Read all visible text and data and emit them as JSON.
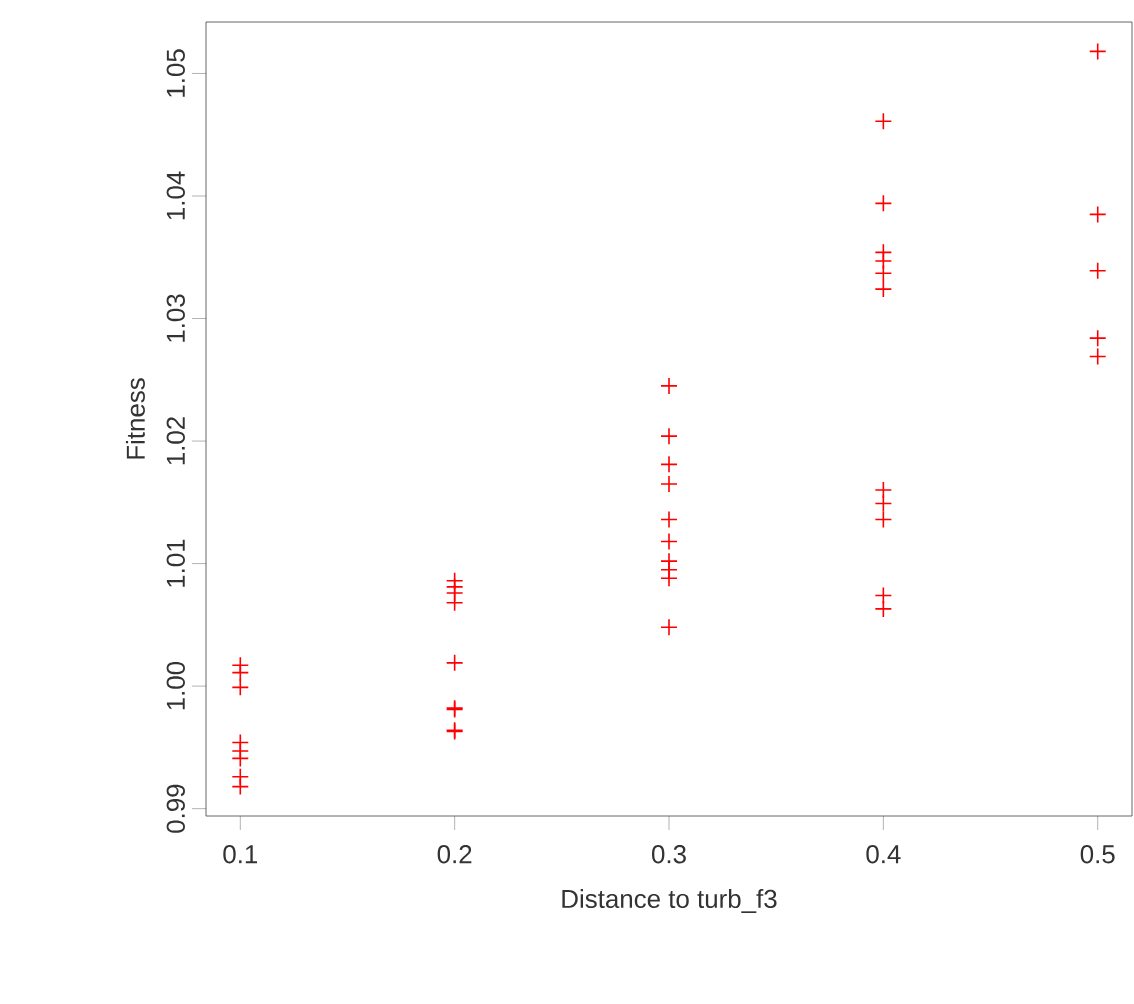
{
  "chart_data": {
    "type": "scatter",
    "xlabel": "Distance to turb_f3",
    "ylabel": "Fitness",
    "marker": "cross",
    "grid": false,
    "xlim": [
      0.084,
      0.516
    ],
    "ylim": [
      0.9894,
      1.0542
    ],
    "xticks": [
      {
        "value": 0.1,
        "label": "0.1"
      },
      {
        "value": 0.2,
        "label": "0.2"
      },
      {
        "value": 0.3,
        "label": "0.3"
      },
      {
        "value": 0.4,
        "label": "0.4"
      },
      {
        "value": 0.5,
        "label": "0.5"
      }
    ],
    "yticks": [
      {
        "value": 0.99,
        "label": "0.99"
      },
      {
        "value": 1.0,
        "label": "1.00"
      },
      {
        "value": 1.01,
        "label": "1.01"
      },
      {
        "value": 1.02,
        "label": "1.02"
      },
      {
        "value": 1.03,
        "label": "1.03"
      },
      {
        "value": 1.04,
        "label": "1.04"
      },
      {
        "value": 1.05,
        "label": "1.05"
      }
    ],
    "series": [
      {
        "color": "#ff0000",
        "x": [
          0.1,
          0.1,
          0.1,
          0.1,
          0.1,
          0.1,
          0.1,
          0.1,
          0.2,
          0.2,
          0.2,
          0.2,
          0.2,
          0.2,
          0.2,
          0.2,
          0.2,
          0.3,
          0.3,
          0.3,
          0.3,
          0.3,
          0.3,
          0.3,
          0.3,
          0.3,
          0.3,
          0.4,
          0.4,
          0.4,
          0.4,
          0.4,
          0.4,
          0.4,
          0.4,
          0.4,
          0.4,
          0.4,
          0.5,
          0.5,
          0.5,
          0.5,
          0.5
        ],
        "values": [
          1.0017,
          1.0011,
          0.9999,
          0.9954,
          0.9947,
          0.9941,
          0.9926,
          0.9918,
          1.0086,
          1.0081,
          1.0076,
          1.0068,
          1.0019,
          0.9982,
          0.9981,
          0.9964,
          0.9963,
          1.0245,
          1.0204,
          1.0181,
          1.0165,
          1.0136,
          1.0118,
          1.0102,
          1.0095,
          1.0088,
          1.0048,
          1.0461,
          1.0394,
          1.0354,
          1.0347,
          1.0337,
          1.0324,
          1.016,
          1.0149,
          1.0136,
          1.0074,
          1.0063,
          1.0518,
          1.0385,
          1.0339,
          1.0284,
          1.0269
        ]
      }
    ]
  }
}
